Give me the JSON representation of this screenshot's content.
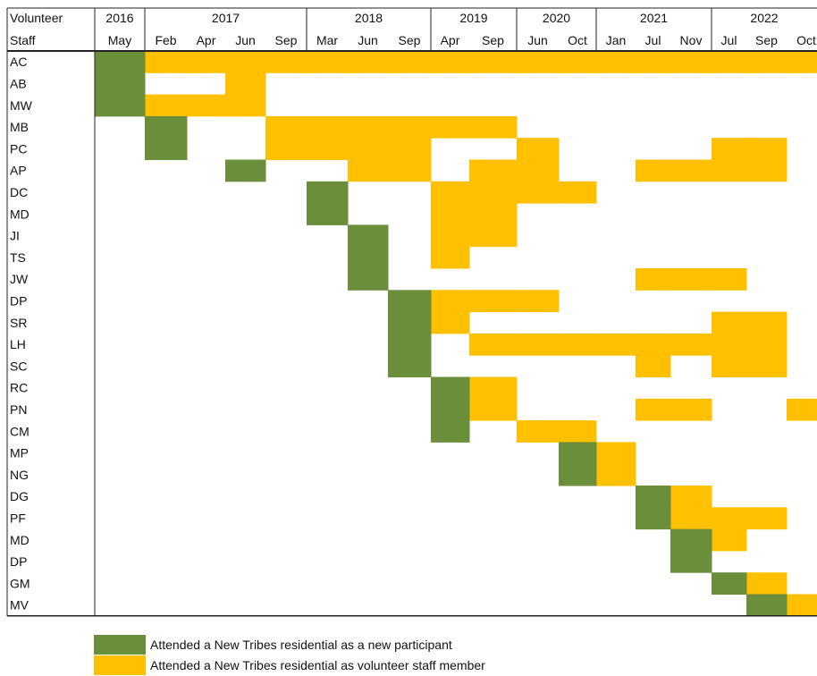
{
  "colors": {
    "participant": "#6b8e3a",
    "staff": "#ffc000",
    "line": "#222222"
  },
  "chart_data": {
    "type": "timeline",
    "header": {
      "left_top": "Volunteer",
      "left_bottom": "Staff",
      "years": [
        "2016",
        "2017",
        "2018",
        "2019",
        "2020",
        "2021",
        "2022"
      ],
      "months": [
        {
          "year": "2016",
          "label": "May"
        },
        {
          "year": "2017",
          "label": "Feb"
        },
        {
          "year": "2017",
          "label": "Apr"
        },
        {
          "year": "2017",
          "label": "Jun"
        },
        {
          "year": "2017",
          "label": "Sep"
        },
        {
          "year": "2018",
          "label": "Mar"
        },
        {
          "year": "2018",
          "label": "Jun"
        },
        {
          "year": "2018",
          "label": "Sep"
        },
        {
          "year": "2019",
          "label": "Apr"
        },
        {
          "year": "2019",
          "label": "Sep"
        },
        {
          "year": "2020",
          "label": "Jun"
        },
        {
          "year": "2020",
          "label": "Oct"
        },
        {
          "year": "2021",
          "label": "Jan"
        },
        {
          "year": "2021",
          "label": "Jul"
        },
        {
          "year": "2021",
          "label": "Nov"
        },
        {
          "year": "2022",
          "label": "Jul"
        },
        {
          "year": "2022",
          "label": "Sep"
        },
        {
          "year": "2022",
          "label": "Oct"
        }
      ]
    },
    "legend": [
      {
        "key": "participant",
        "label": "Attended a New Tribes residential as a new participant"
      },
      {
        "key": "staff",
        "label": "Attended a New Tribes residential as volunteer staff member"
      }
    ],
    "rows": [
      {
        "name": "AC",
        "participant": [
          0
        ],
        "staff": [
          1,
          2,
          3,
          4,
          5,
          6,
          7,
          8,
          9,
          10,
          11,
          12,
          13,
          14,
          15,
          16,
          17
        ]
      },
      {
        "name": "AB",
        "participant": [
          0
        ],
        "staff": [
          3
        ]
      },
      {
        "name": "MW",
        "participant": [
          0
        ],
        "staff": [
          1,
          2,
          3
        ]
      },
      {
        "name": "MB",
        "participant": [
          1
        ],
        "staff": [
          4,
          5,
          6,
          7,
          8,
          9
        ]
      },
      {
        "name": "PC",
        "participant": [
          1
        ],
        "staff": [
          4,
          5,
          6,
          7,
          10,
          15,
          16
        ]
      },
      {
        "name": "AP",
        "participant": [
          3
        ],
        "staff": [
          6,
          7,
          9,
          10,
          13,
          14,
          15,
          16
        ]
      },
      {
        "name": "DC",
        "participant": [
          5
        ],
        "staff": [
          8,
          9,
          10,
          11
        ]
      },
      {
        "name": "MD",
        "participant": [
          5
        ],
        "staff": [
          8,
          9
        ]
      },
      {
        "name": "JI",
        "participant": [
          6
        ],
        "staff": [
          8,
          9
        ]
      },
      {
        "name": "TS",
        "participant": [
          6
        ],
        "staff": [
          8
        ]
      },
      {
        "name": "JW",
        "participant": [
          6
        ],
        "staff": [
          13,
          14,
          15
        ]
      },
      {
        "name": "DP",
        "participant": [
          7
        ],
        "staff": [
          8,
          9,
          10
        ]
      },
      {
        "name": "SR",
        "participant": [
          7
        ],
        "staff": [
          8,
          15,
          16
        ]
      },
      {
        "name": "LH",
        "participant": [
          7
        ],
        "staff": [
          9,
          10,
          11,
          12,
          13,
          14,
          15,
          16
        ]
      },
      {
        "name": "SC",
        "participant": [
          7
        ],
        "staff": [
          13,
          15,
          16
        ]
      },
      {
        "name": "RC",
        "participant": [
          8
        ],
        "staff": [
          9
        ]
      },
      {
        "name": "PN",
        "participant": [
          8
        ],
        "staff": [
          9,
          13,
          14,
          17
        ]
      },
      {
        "name": "CM",
        "participant": [
          8
        ],
        "staff": [
          10,
          11
        ]
      },
      {
        "name": "MP",
        "participant": [
          11
        ],
        "staff": [
          12
        ]
      },
      {
        "name": "NG",
        "participant": [
          11
        ],
        "staff": [
          12
        ]
      },
      {
        "name": "DG",
        "participant": [
          13
        ],
        "staff": [
          14
        ]
      },
      {
        "name": "PF",
        "participant": [
          13
        ],
        "staff": [
          14,
          15,
          16
        ]
      },
      {
        "name": "MD",
        "participant": [
          14
        ],
        "staff": [
          15
        ]
      },
      {
        "name": "DP",
        "participant": [
          14
        ],
        "staff": []
      },
      {
        "name": "GM",
        "participant": [
          15
        ],
        "staff": [
          16
        ]
      },
      {
        "name": "MV",
        "participant": [
          16
        ],
        "staff": [
          17
        ]
      }
    ]
  }
}
